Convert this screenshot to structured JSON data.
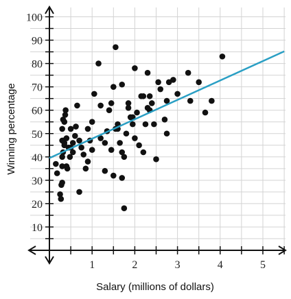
{
  "chart_data": {
    "type": "scatter",
    "title": "",
    "xlabel": "Salary (millions of dollars)",
    "ylabel": "Winning percentage",
    "xlim": [
      0,
      5.5
    ],
    "ylim": [
      0,
      100
    ],
    "grid": true,
    "x_ticks": [
      1,
      2,
      3,
      4,
      5
    ],
    "y_ticks": [
      10,
      20,
      30,
      40,
      50,
      60,
      70,
      80,
      90,
      100
    ],
    "trend_line": {
      "x": [
        0,
        5.5
      ],
      "y": [
        39.5,
        85.2
      ]
    },
    "colors": {
      "points": "#111111",
      "trend_line": "#2a9fc4",
      "grid": "#d3d3d3",
      "axes": "#111111"
    },
    "series": [
      {
        "x": [
          0.15,
          0.18,
          0.25,
          0.27,
          0.28,
          0.3,
          0.3,
          0.32,
          0.33,
          0.35,
          0.35,
          0.37,
          0.38,
          0.4,
          0.42,
          0.45,
          0.48,
          0.5,
          0.55,
          0.6,
          0.62,
          0.65,
          0.7,
          0.75,
          0.8,
          0.85,
          0.9,
          0.95,
          1.0,
          0.7,
          0.3,
          0.32,
          0.35,
          0.3,
          0.4,
          1.05,
          1.15,
          1.2,
          1.3,
          1.35,
          1.4,
          1.45,
          1.5,
          1.55,
          1.6,
          1.65,
          1.7,
          1.75,
          1.8,
          1.85,
          1.9,
          1.95,
          2.0,
          2.05,
          2.1,
          2.15,
          2.2,
          2.25,
          2.3,
          2.35,
          2.4,
          2.5,
          2.55,
          2.6,
          2.7,
          2.75,
          2.8,
          2.9,
          3.0,
          3.25,
          3.3,
          3.5,
          3.65,
          3.8,
          4.05,
          1.5,
          1.2,
          1.75,
          2.35,
          2.0,
          1.7,
          1.45,
          1.3,
          1.85,
          2.45,
          2.75,
          1.55,
          1.95,
          2.3,
          1.7,
          0.55,
          0.3,
          1.0,
          1.6,
          2.2,
          0.5,
          0.9
        ],
        "y": [
          37,
          33,
          24,
          22,
          28,
          29,
          36,
          42,
          47,
          45,
          55,
          58,
          60,
          48,
          35,
          44,
          40,
          52,
          46,
          49,
          53,
          62,
          47,
          44,
          41,
          35,
          52,
          47,
          43,
          25,
          52,
          56,
          46,
          40,
          36,
          67,
          80,
          62,
          46,
          51,
          60,
          43,
          70,
          87,
          54,
          46,
          71,
          40,
          50,
          61,
          57,
          54,
          48,
          59,
          45,
          66,
          42,
          54,
          76,
          66,
          63,
          39,
          72,
          69,
          56,
          64,
          72,
          73,
          67,
          76,
          64,
          72,
          59,
          64,
          83,
          32,
          48,
          18,
          60,
          78,
          42,
          63,
          34,
          63,
          54,
          50,
          52,
          57,
          61,
          31,
          42,
          47,
          55,
          52,
          66,
          44,
          38
        ]
      }
    ]
  }
}
